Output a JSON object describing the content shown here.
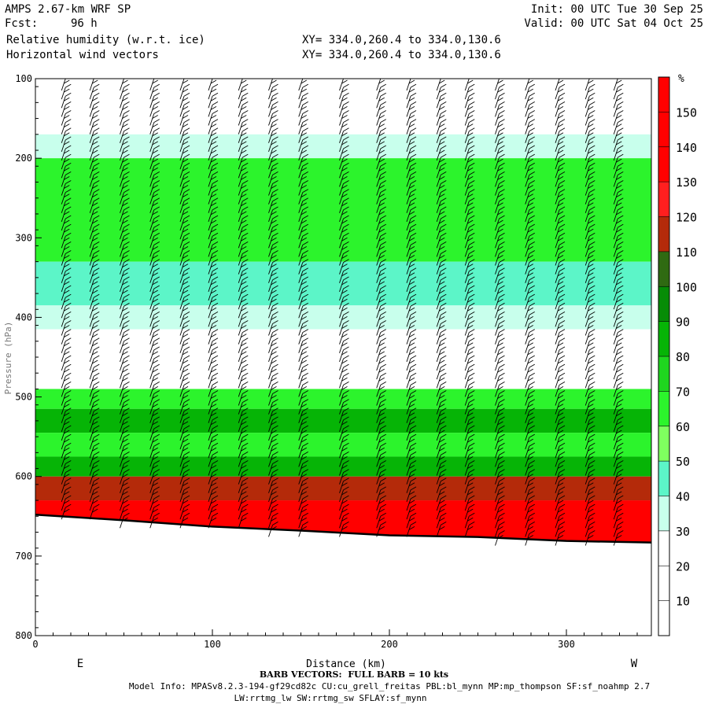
{
  "header": {
    "model": "AMPS 2.67-km WRF SP",
    "init": "Init: 00 UTC Tue 30 Sep 25",
    "fcst_label": "Fcst:",
    "fcst_value": "96 h",
    "valid": "Valid: 00 UTC Sat 04 Oct 25",
    "field1": "Relative humidity (w.r.t. ice)",
    "field2": "Horizontal wind vectors",
    "xy1": "XY= 334.0,260.4 to 334.0,130.6",
    "xy2": "XY= 334.0,260.4 to 334.0,130.6"
  },
  "footer": {
    "barb": "BARB VECTORS:  FULL BARB = 10 kts",
    "model_info": "Model Info: MPASv8.2.3-194-gf29cd82c CU:cu_grell_freitas PBL:bl_mynn MP:mp_thompson SF:sf_noahmp 2.7",
    "model_info2": "LW:rrtmg_lw SW:rrtmg_sw SFLAY:sf_mynn"
  },
  "chart_data": {
    "type": "heatmap",
    "title": "Relative humidity (w.r.t. ice) cross-section with horizontal wind barbs",
    "xlabel": "Distance (km)",
    "ylabel": "Pressure (hPa)",
    "x_range": [
      0,
      348
    ],
    "y_range": [
      800,
      100
    ],
    "x_ticks": [
      0,
      100,
      200,
      300
    ],
    "y_ticks": [
      100,
      200,
      300,
      400,
      500,
      600,
      700,
      800
    ],
    "x_end_labels": {
      "left": "E",
      "right": "W"
    },
    "colorbar": {
      "unit": "%",
      "levels": [
        10,
        20,
        30,
        40,
        50,
        60,
        70,
        80,
        90,
        100,
        110,
        120,
        130,
        140,
        150
      ],
      "colors": [
        "#ffffff",
        "#ffffff",
        "#ffffff",
        "#c8ffec",
        "#5cf5c8",
        "#7fff5f",
        "#2cf42c",
        "#1fd61f",
        "#06b406",
        "#068c06",
        "#2f6a12",
        "#b42a0a",
        "#ff1f1f",
        "#ff0000",
        "#ff0000",
        "#ff0000"
      ]
    },
    "terrain_pressure": [
      [
        0,
        648
      ],
      [
        50,
        655
      ],
      [
        100,
        663
      ],
      [
        150,
        668
      ],
      [
        200,
        674
      ],
      [
        250,
        676
      ],
      [
        300,
        681
      ],
      [
        348,
        683
      ]
    ],
    "rh_profile": [
      {
        "p_top": 100,
        "p_bot": 170,
        "rh": 20
      },
      {
        "p_top": 170,
        "p_bot": 200,
        "rh": 35
      },
      {
        "p_top": 200,
        "p_bot": 330,
        "rh": 60
      },
      {
        "p_top": 330,
        "p_bot": 385,
        "rh": 45
      },
      {
        "p_top": 385,
        "p_bot": 415,
        "rh": 35
      },
      {
        "p_top": 415,
        "p_bot": 490,
        "rh": 20
      },
      {
        "p_top": 490,
        "p_bot": 515,
        "rh": 65
      },
      {
        "p_top": 515,
        "p_bot": 545,
        "rh": 85
      },
      {
        "p_top": 545,
        "p_bot": 575,
        "rh": 65
      },
      {
        "p_top": 575,
        "p_bot": 600,
        "rh": 85
      },
      {
        "p_top": 600,
        "p_bot": 630,
        "rh": 115
      },
      {
        "p_top": 630,
        "p_bot": 700,
        "rh": 140
      }
    ],
    "barb_x": [
      17,
      33,
      50,
      67,
      84,
      100,
      117,
      134,
      151,
      174,
      195,
      212,
      229,
      245,
      262,
      279,
      296,
      313,
      329
    ],
    "barb_speed_kts": 25
  }
}
